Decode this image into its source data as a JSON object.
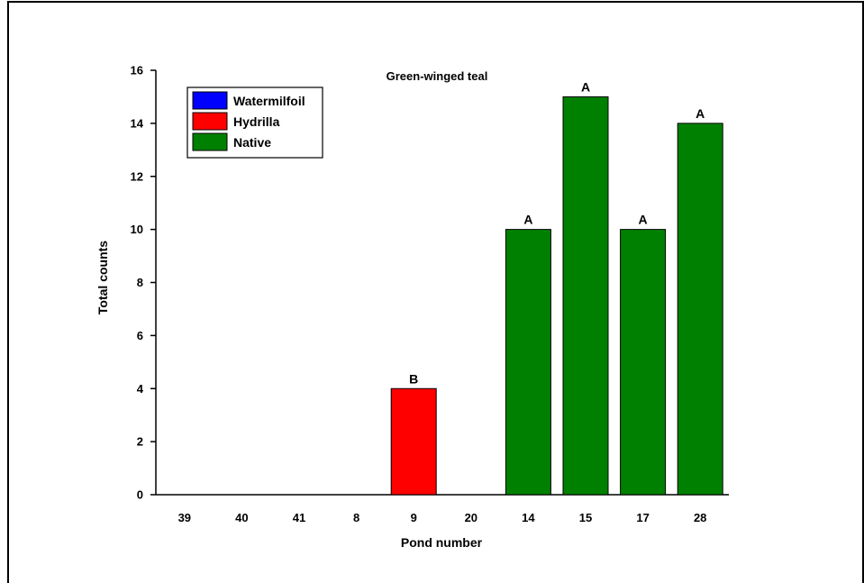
{
  "chart_data": {
    "type": "bar",
    "title": "Green-winged teal",
    "xlabel": "Pond number",
    "ylabel": "Total counts",
    "ylim": [
      0,
      16
    ],
    "yticks": [
      0,
      2,
      4,
      6,
      8,
      10,
      12,
      14,
      16
    ],
    "categories": [
      "39",
      "40",
      "41",
      "8",
      "9",
      "20",
      "14",
      "15",
      "17",
      "28"
    ],
    "values": [
      0,
      0,
      0,
      0,
      4,
      0,
      10,
      15,
      10,
      14
    ],
    "groups": [
      "Watermilfoil",
      "Watermilfoil",
      "Watermilfoil",
      "Hydrilla",
      "Hydrilla",
      "Hydrilla",
      "Native",
      "Native",
      "Native",
      "Native"
    ],
    "letters": [
      "",
      "",
      "",
      "",
      "B",
      "",
      "A",
      "A",
      "A",
      "A"
    ],
    "legend": {
      "position": "top-left",
      "items": [
        {
          "label": "Watermilfoil",
          "color": "#0000ff"
        },
        {
          "label": "Hydrilla",
          "color": "#ff0000"
        },
        {
          "label": "Native",
          "color": "#008000"
        }
      ]
    },
    "colors": {
      "Watermilfoil": "#0000ff",
      "Hydrilla": "#ff0000",
      "Native": "#008000"
    },
    "grid": false
  }
}
